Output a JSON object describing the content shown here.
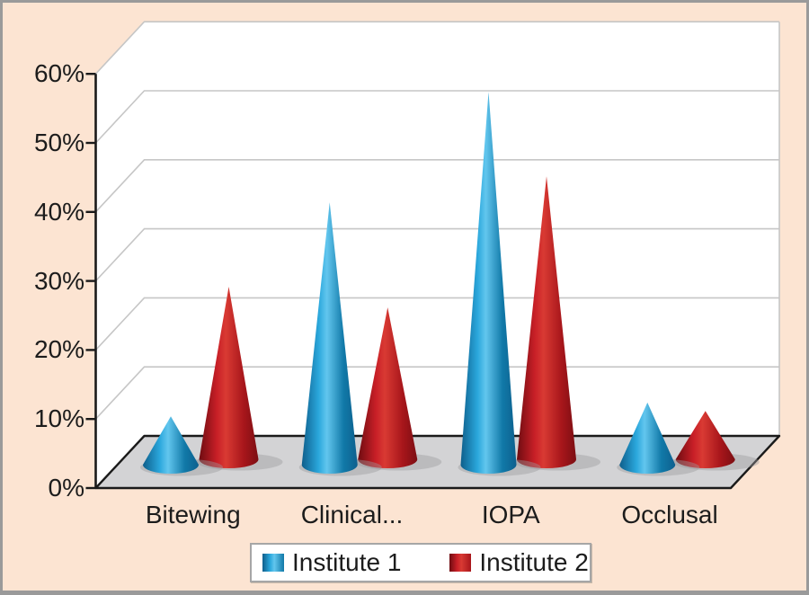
{
  "chart": {
    "background_color": "#fce4d2",
    "plot_background": "#ffffff",
    "floor_color": "#d3d3d5",
    "gridline_color": "#c6c6c6",
    "axis_color": "#1a1a1a",
    "text_color": "#1c1c1c",
    "shadow_color": "#9b9b9d",
    "legend_border_color": "#a6a6a6"
  },
  "chart_data": {
    "type": "bar",
    "subtype": "3d-cone",
    "title": "",
    "xlabel": "",
    "ylabel": "",
    "categories": [
      "Bitewing",
      "Clinical...",
      "IOPA",
      "Occlusal"
    ],
    "series": [
      {
        "name": "Institute 1",
        "color": "#1b9bd7",
        "values": [
          7,
          38,
          54,
          9
        ],
        "gradient": [
          "#0e5e8b",
          "#2aa7dc",
          "#62c6ee",
          "#1179a8",
          "#0d608e"
        ]
      },
      {
        "name": "Institute 2",
        "color": "#c1272d",
        "values": [
          25,
          22,
          41,
          7
        ],
        "gradient": [
          "#6e0c11",
          "#c81f27",
          "#d93a33",
          "#a8161b",
          "#7c0e13"
        ]
      }
    ],
    "values_unit": "%",
    "y_ticks": [
      "0%",
      "10%",
      "20%",
      "30%",
      "40%",
      "50%",
      "60%"
    ],
    "ylim": [
      0,
      60
    ],
    "grid": true,
    "legend_position": "bottom"
  }
}
